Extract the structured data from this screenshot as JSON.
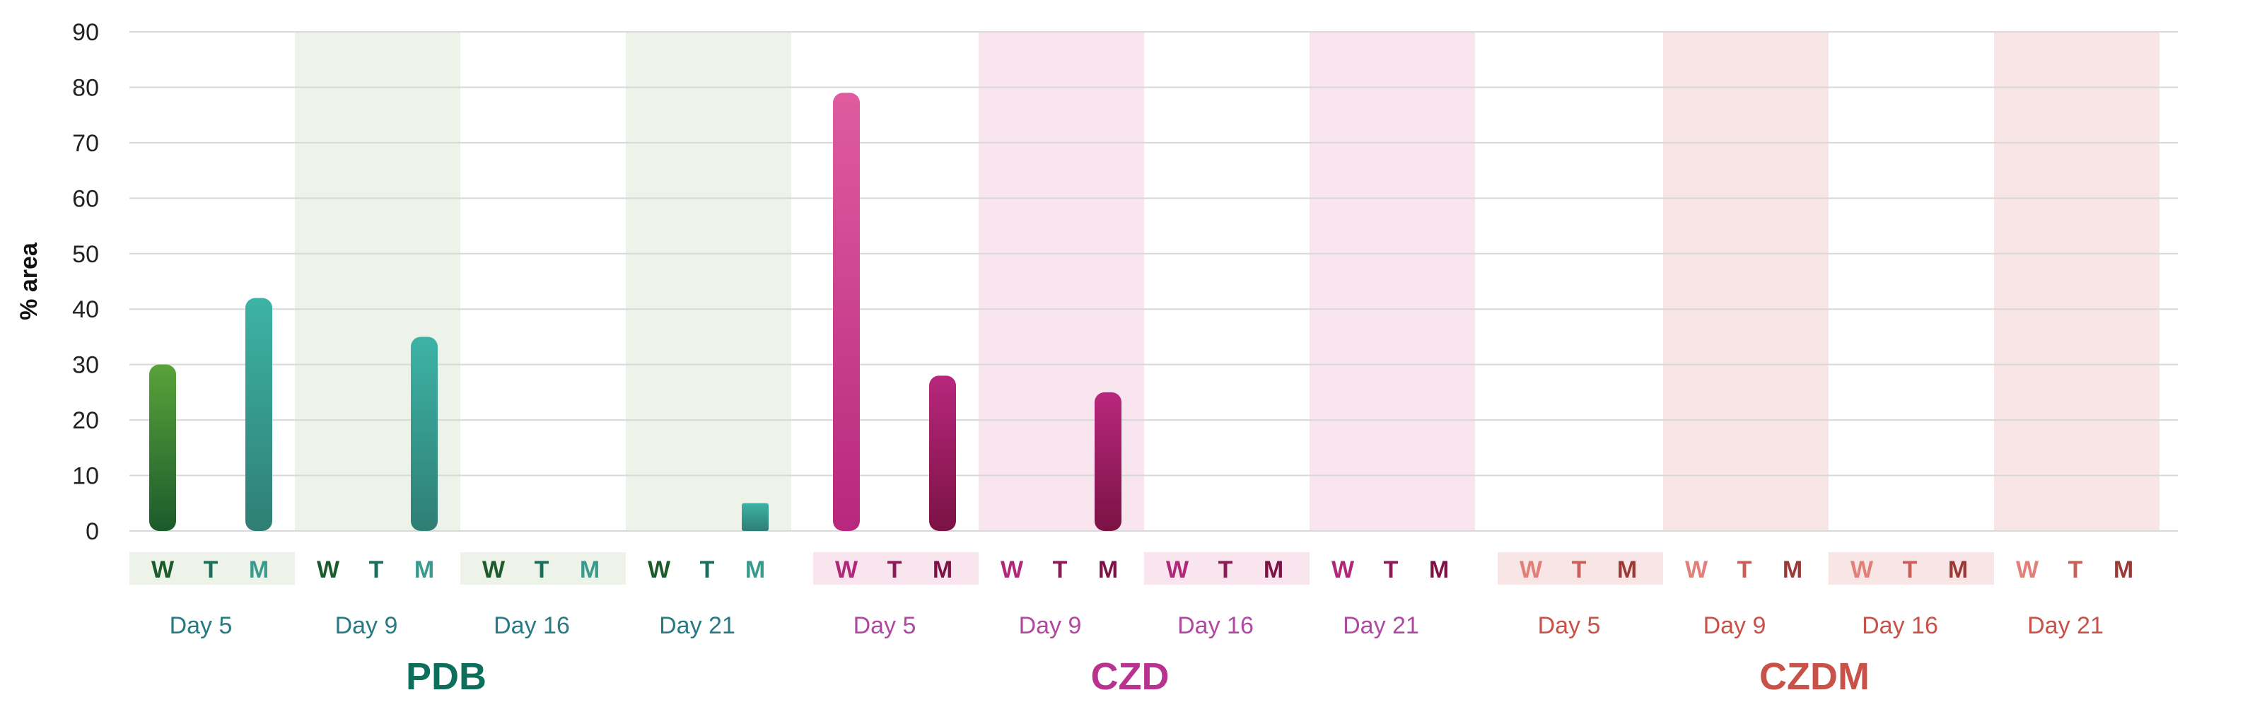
{
  "chart_data": {
    "type": "bar",
    "ylabel": "% area",
    "ylim": [
      0,
      90
    ],
    "yticks": [
      0,
      10,
      20,
      30,
      40,
      50,
      60,
      70,
      80,
      90
    ],
    "grid": true,
    "sub_categories": [
      "W",
      "T",
      "M"
    ],
    "groups": [
      {
        "name": "PDB",
        "color": "#0e6e5c",
        "days": [
          {
            "day": "Day 5",
            "values": [
              30,
              0,
              42
            ],
            "shaded": false
          },
          {
            "day": "Day 9",
            "values": [
              0,
              0,
              35
            ],
            "shaded": true
          },
          {
            "day": "Day 16",
            "values": [
              0,
              0,
              0
            ],
            "shaded": false
          },
          {
            "day": "Day 21",
            "values": [
              0,
              0,
              5
            ],
            "shaded": true
          }
        ]
      },
      {
        "name": "CZD",
        "color": "#b8328f",
        "days": [
          {
            "day": "Day 5",
            "values": [
              79,
              0,
              28
            ],
            "shaded": false
          },
          {
            "day": "Day 9",
            "values": [
              0,
              0,
              25
            ],
            "shaded": true
          },
          {
            "day": "Day 16",
            "values": [
              0,
              0,
              0
            ],
            "shaded": false
          },
          {
            "day": "Day 21",
            "values": [
              0,
              0,
              0
            ],
            "shaded": true
          }
        ]
      },
      {
        "name": "CZDM",
        "color": "#c8524a",
        "days": [
          {
            "day": "Day 5",
            "values": [
              0,
              0,
              0
            ],
            "shaded": false
          },
          {
            "day": "Day 9",
            "values": [
              0,
              0,
              0
            ],
            "shaded": true
          },
          {
            "day": "Day 16",
            "values": [
              0,
              0,
              0
            ],
            "shaded": false
          },
          {
            "day": "Day 21",
            "values": [
              0,
              0,
              0
            ],
            "shaded": true
          }
        ]
      }
    ]
  },
  "style": {
    "pdb_shade": "#edf3e9",
    "czd_shade": "#f8e5ee",
    "czdm_shade": "#f8e6e6",
    "pdb_w_color": "#1d5a2c",
    "pdb_t_color": "#1a6e5a",
    "pdb_m_color": "#3a9b8c",
    "czd_w_color": "#b0287a",
    "czd_t_color": "#8a1d55",
    "czd_m_color": "#7d1245",
    "czdm_w_color": "#e08078",
    "czdm_t_color": "#c8605a",
    "czdm_m_color": "#9a3a38",
    "pdb_day_color": "#2a7a82",
    "czd_day_color": "#b04aa0",
    "czdm_day_color": "#c8524a",
    "grid_color": "#d8d8d8"
  }
}
